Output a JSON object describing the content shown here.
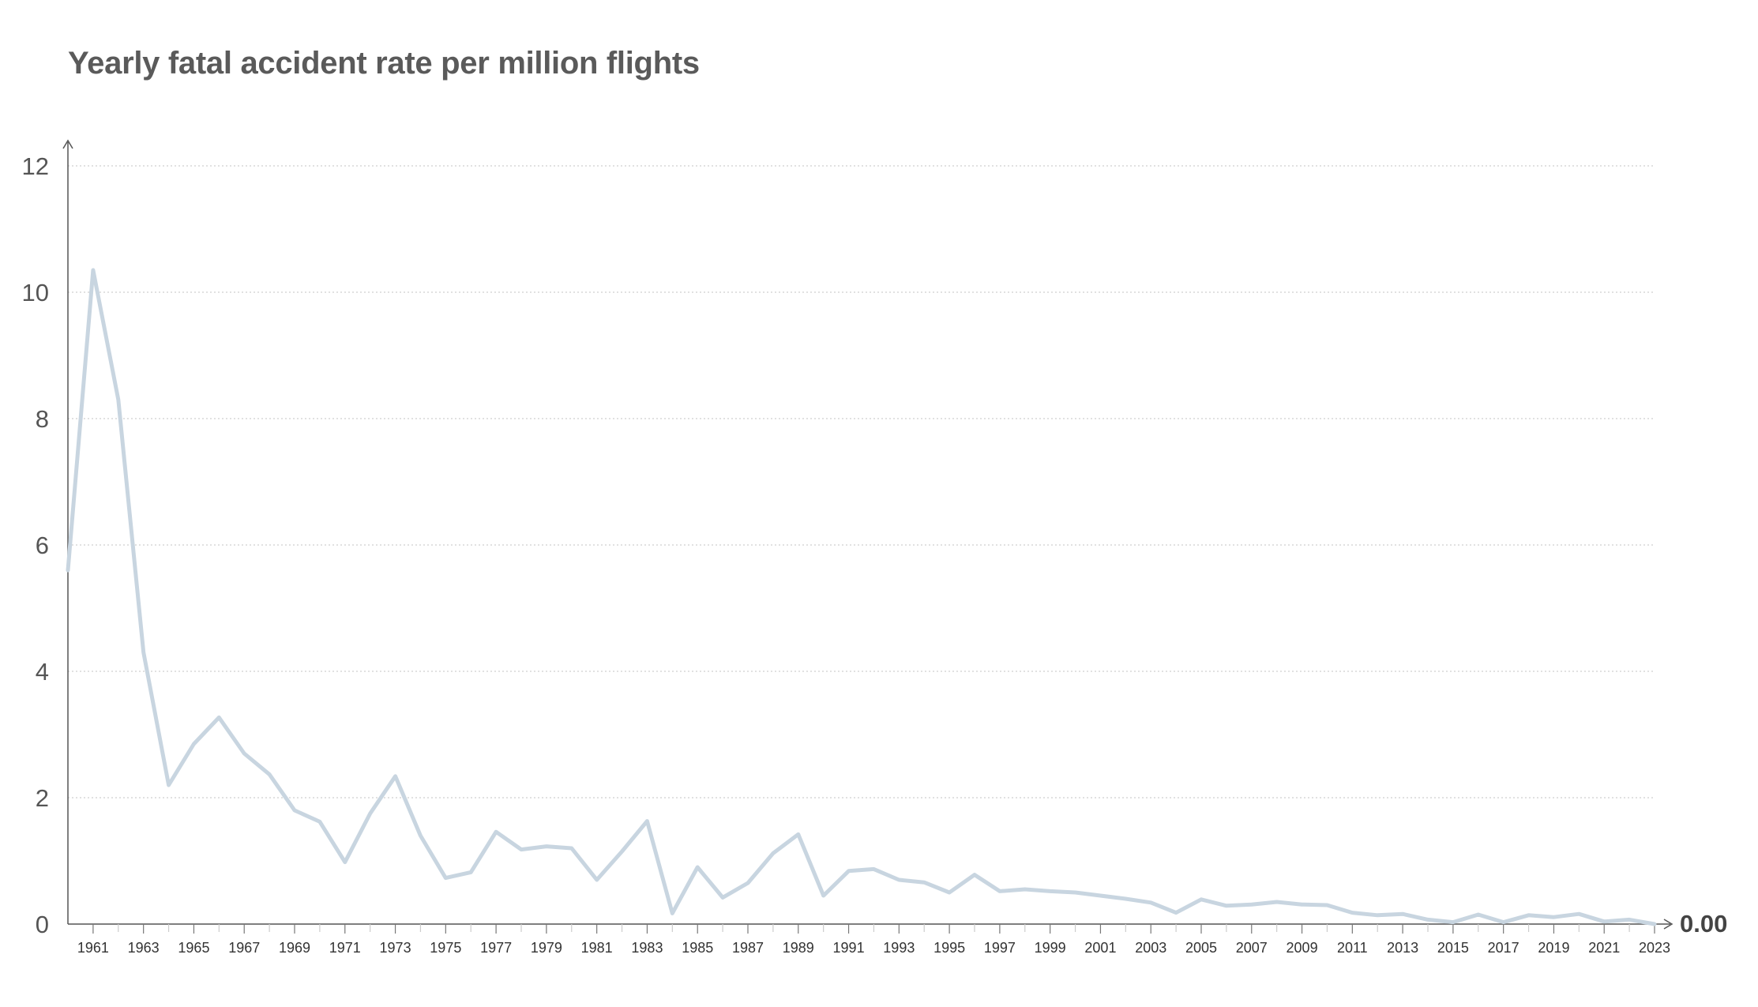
{
  "chart_data": {
    "type": "line",
    "title": "Yearly fatal accident rate per million flights",
    "xlabel": "",
    "ylabel": "",
    "ylim": [
      0,
      12
    ],
    "xlim": [
      1960,
      2023
    ],
    "yticks": [
      0,
      2,
      4,
      6,
      8,
      10,
      12
    ],
    "xticks": [
      1961,
      1963,
      1965,
      1967,
      1969,
      1971,
      1973,
      1975,
      1977,
      1979,
      1981,
      1983,
      1985,
      1987,
      1989,
      1991,
      1993,
      1995,
      1997,
      1999,
      2001,
      2003,
      2005,
      2007,
      2009,
      2011,
      2013,
      2015,
      2017,
      2019,
      2021,
      2023
    ],
    "grid": "horizontal dotted",
    "line_color": "#c8d5e0",
    "end_label": "0.00",
    "series": [
      {
        "x": [
          1960,
          1961,
          1962,
          1963,
          1964,
          1965,
          1966,
          1967,
          1968,
          1969,
          1970,
          1971,
          1972,
          1973,
          1974,
          1975,
          1976,
          1977,
          1978,
          1979,
          1980,
          1981,
          1982,
          1983,
          1984,
          1985,
          1986,
          1987,
          1988,
          1989,
          1990,
          1991,
          1992,
          1993,
          1994,
          1995,
          1996,
          1997,
          1998,
          1999,
          2000,
          2001,
          2002,
          2003,
          2004,
          2005,
          2006,
          2007,
          2008,
          2009,
          2010,
          2011,
          2012,
          2013,
          2014,
          2015,
          2016,
          2017,
          2018,
          2019,
          2020,
          2021,
          2022,
          2023
        ],
        "values": [
          5.6,
          10.35,
          8.3,
          4.3,
          2.2,
          2.85,
          3.27,
          2.7,
          2.37,
          1.8,
          1.62,
          0.98,
          1.75,
          2.34,
          1.4,
          0.73,
          0.82,
          1.46,
          1.18,
          1.23,
          1.2,
          0.7,
          1.15,
          1.63,
          0.17,
          0.9,
          0.42,
          0.65,
          1.12,
          1.42,
          0.45,
          0.84,
          0.87,
          0.7,
          0.66,
          0.5,
          0.78,
          0.52,
          0.55,
          0.52,
          0.5,
          0.45,
          0.4,
          0.34,
          0.18,
          0.39,
          0.29,
          0.31,
          0.35,
          0.31,
          0.3,
          0.18,
          0.14,
          0.16,
          0.07,
          0.03,
          0.15,
          0.03,
          0.14,
          0.11,
          0.16,
          0.04,
          0.07,
          0.0
        ]
      }
    ]
  }
}
